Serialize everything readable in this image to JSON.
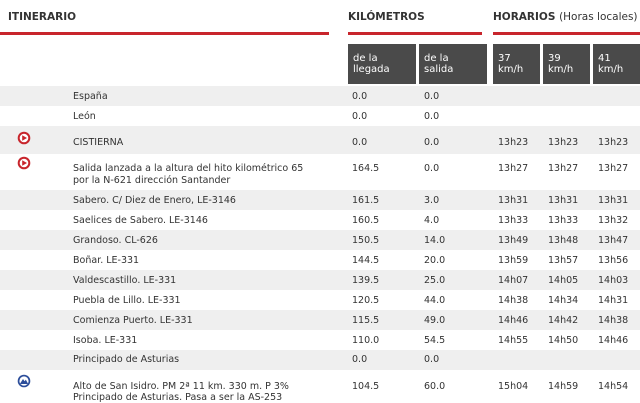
{
  "header": {
    "itinerario": "ITINERARIO",
    "kilometros": "KILÓMETROS",
    "horarios": "HORARIOS",
    "horarios_note": "(Horas locales)"
  },
  "subheaders": {
    "llegada": "de la llegada",
    "salida": "de la salida",
    "s37": "37 km/h",
    "s39": "39 km/h",
    "s41": "41 km/h"
  },
  "colors": {
    "accent": "#c8252c",
    "subheader_bg": "#4a4a4a",
    "row_alt": "#efefef",
    "climb_icon": "#2b4d9a"
  },
  "rows": [
    {
      "place": "España",
      "llegada": "0.0",
      "salida": "0.0",
      "t37": "",
      "t39": "",
      "t41": "",
      "icon": ""
    },
    {
      "place": "León",
      "llegada": "0.0",
      "salida": "0.0",
      "t37": "",
      "t39": "",
      "t41": "",
      "icon": ""
    },
    {
      "place": "CISTIERNA",
      "llegada": "0.0",
      "salida": "0.0",
      "t37": "13h23",
      "t39": "13h23",
      "t41": "13h23",
      "icon": "start-arrow-icon"
    },
    {
      "place": "Salida lanzada a la altura del hito kilométrico 65",
      "place2": "por la N-621 dirección Santander",
      "llegada": "164.5",
      "salida": "0.0",
      "t37": "13h27",
      "t39": "13h27",
      "t41": "13h27",
      "icon": "start-arrow-icon"
    },
    {
      "place": "Sabero. C/ Diez de Enero, LE-3146",
      "llegada": "161.5",
      "salida": "3.0",
      "t37": "13h31",
      "t39": "13h31",
      "t41": "13h31",
      "icon": ""
    },
    {
      "place": "Saelices de Sabero. LE-3146",
      "llegada": "160.5",
      "salida": "4.0",
      "t37": "13h33",
      "t39": "13h33",
      "t41": "13h32",
      "icon": ""
    },
    {
      "place": "Grandoso. CL-626",
      "llegada": "150.5",
      "salida": "14.0",
      "t37": "13h49",
      "t39": "13h48",
      "t41": "13h47",
      "icon": ""
    },
    {
      "place": "Boñar. LE-331",
      "llegada": "144.5",
      "salida": "20.0",
      "t37": "13h59",
      "t39": "13h57",
      "t41": "13h56",
      "icon": ""
    },
    {
      "place": "Valdescastillo. LE-331",
      "llegada": "139.5",
      "salida": "25.0",
      "t37": "14h07",
      "t39": "14h05",
      "t41": "14h03",
      "icon": ""
    },
    {
      "place": "Puebla de Lillo. LE-331",
      "llegada": "120.5",
      "salida": "44.0",
      "t37": "14h38",
      "t39": "14h34",
      "t41": "14h31",
      "icon": ""
    },
    {
      "place": "Comienza Puerto. LE-331",
      "llegada": "115.5",
      "salida": "49.0",
      "t37": "14h46",
      "t39": "14h42",
      "t41": "14h38",
      "icon": ""
    },
    {
      "place": "Isoba. LE-331",
      "llegada": "110.0",
      "salida": "54.5",
      "t37": "14h55",
      "t39": "14h50",
      "t41": "14h46",
      "icon": ""
    },
    {
      "place": "Principado de Asturias",
      "llegada": "0.0",
      "salida": "0.0",
      "t37": "",
      "t39": "",
      "t41": "",
      "icon": ""
    },
    {
      "place": "Alto de San Isidro. PM 2ª 11 km. 330 m. P 3%",
      "place2": "Principado de Asturias. Pasa a ser la AS-253",
      "llegada": "104.5",
      "salida": "60.0",
      "t37": "15h04",
      "t39": "14h59",
      "t41": "14h54",
      "icon": "mountain-climb-icon"
    }
  ]
}
